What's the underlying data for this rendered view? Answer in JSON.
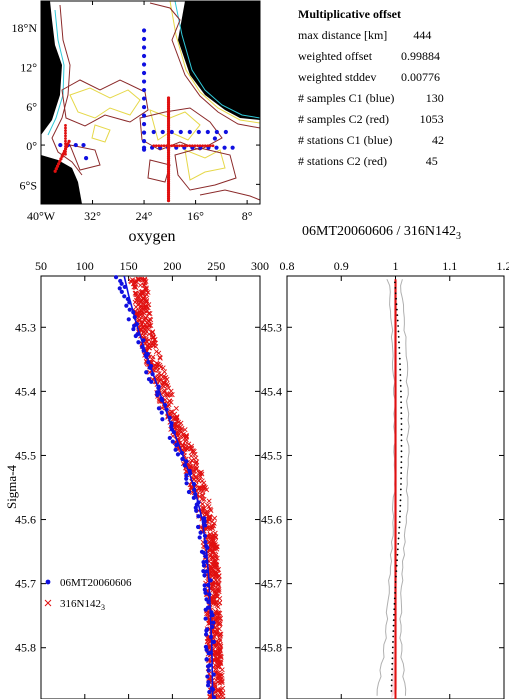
{
  "map": {
    "lat_ticks": [
      "18°N",
      "12°",
      "6°",
      "0°",
      "6°S"
    ],
    "lon_ticks": [
      "40°W",
      "32°",
      "24°",
      "16°",
      "8°"
    ],
    "lat_values": [
      18,
      12,
      6,
      0,
      -6
    ],
    "lon_values": [
      -40,
      -32,
      -24,
      -16,
      -8
    ],
    "lon_range": [
      -40,
      -6
    ],
    "lat_range": [
      -9,
      22
    ],
    "title": "oxygen"
  },
  "stats": {
    "heading": "Multiplicative offset",
    "rows": [
      {
        "label": "max distance [km]",
        "value": "444"
      },
      {
        "label": "weighted offset",
        "value": "0.99884"
      },
      {
        "label": "weighted stddev",
        "value": "0.00776"
      },
      {
        "label": "# samples C1 (blue)",
        "value": "130"
      },
      {
        "label": "# samples C2 (red)",
        "value": "1053"
      },
      {
        "label": "# stations C1 (blue)",
        "value": "42"
      },
      {
        "label": "# stations C2 (red)",
        "value": "45"
      }
    ]
  },
  "ratio_title": "06MT20060606 / 316N142",
  "ratio_title_sub": "3",
  "colors": {
    "blue": "#1010e0",
    "red": "#e01010",
    "darkred": "#8b0000",
    "land": "#000000",
    "contour_brown": "#8b2a2a",
    "contour_yellow": "#e6d84a",
    "contour_cyan": "#30c8d8"
  },
  "chart_data": [
    {
      "type": "scatter",
      "title": "",
      "xlabel": "",
      "ylabel": "Sigma-4",
      "xlim": [
        50,
        300
      ],
      "ylim": [
        45.88,
        45.22
      ],
      "x_ticks": [
        50,
        100,
        150,
        200,
        250,
        300
      ],
      "y_ticks": [
        45.3,
        45.4,
        45.5,
        45.6,
        45.7,
        45.8
      ],
      "y_tick_labels": [
        "45.3",
        "45.4",
        "45.5",
        "45.6",
        "45.7",
        "45.8"
      ],
      "legend_position": "bottom-left",
      "series": [
        {
          "name": "06MT20060606",
          "marker": "dot",
          "color": "#1010e0",
          "profile": [
            [
              45.22,
              140
            ],
            [
              45.25,
              145
            ],
            [
              45.3,
              158
            ],
            [
              45.35,
              170
            ],
            [
              45.4,
              182
            ],
            [
              45.45,
              195
            ],
            [
              45.5,
              210
            ],
            [
              45.55,
              222
            ],
            [
              45.6,
              232
            ],
            [
              45.65,
              238
            ],
            [
              45.7,
              241
            ],
            [
              45.8,
              243
            ],
            [
              45.88,
              244
            ]
          ]
        },
        {
          "name": "316N142",
          "name_sub": "3",
          "marker": "x",
          "color": "#e01010",
          "profile": [
            [
              45.22,
              160
            ],
            [
              45.25,
              165
            ],
            [
              45.3,
              168
            ],
            [
              45.35,
              178
            ],
            [
              45.4,
              190
            ],
            [
              45.45,
              203
            ],
            [
              45.5,
              218
            ],
            [
              45.55,
              230
            ],
            [
              45.6,
              240
            ],
            [
              45.65,
              244
            ],
            [
              45.7,
              246
            ],
            [
              45.8,
              248
            ],
            [
              45.88,
              250
            ]
          ]
        }
      ],
      "fit_line": {
        "color": "#1010e0",
        "profile": [
          [
            45.22,
            145
          ],
          [
            45.25,
            150
          ],
          [
            45.3,
            160
          ],
          [
            45.35,
            172
          ],
          [
            45.4,
            185
          ],
          [
            45.45,
            198
          ],
          [
            45.5,
            212
          ],
          [
            45.55,
            225
          ],
          [
            45.6,
            234
          ],
          [
            45.65,
            239
          ],
          [
            45.7,
            242
          ],
          [
            45.8,
            245
          ],
          [
            45.88,
            246
          ]
        ]
      }
    },
    {
      "type": "line",
      "title": "06MT20060606 / 316N142_3",
      "xlim": [
        0.8,
        1.2
      ],
      "ylim": [
        45.88,
        45.22
      ],
      "x_ticks": [
        0.8,
        0.9,
        1.0,
        1.1,
        1.2
      ],
      "x_tick_labels": [
        "0.8",
        "0.9",
        "1",
        "1.1",
        "1.2"
      ],
      "y_ticks": [
        45.3,
        45.4,
        45.5,
        45.6,
        45.7,
        45.8
      ],
      "y_tick_labels": [
        "45.3",
        "45.4",
        "45.5",
        "45.6",
        "45.7",
        "45.8"
      ],
      "reference_value": 1.0,
      "ratio_profile": [
        [
          45.22,
          0.998
        ],
        [
          45.3,
          1.005
        ],
        [
          45.35,
          1.008
        ],
        [
          45.4,
          1.01
        ],
        [
          45.45,
          1.011
        ],
        [
          45.5,
          1.011
        ],
        [
          45.55,
          1.01
        ],
        [
          45.6,
          1.008
        ],
        [
          45.65,
          1.004
        ],
        [
          45.7,
          1.0
        ],
        [
          45.75,
          0.997
        ],
        [
          45.8,
          0.995
        ],
        [
          45.88,
          0.992
        ]
      ],
      "envelope": 0.012
    }
  ]
}
